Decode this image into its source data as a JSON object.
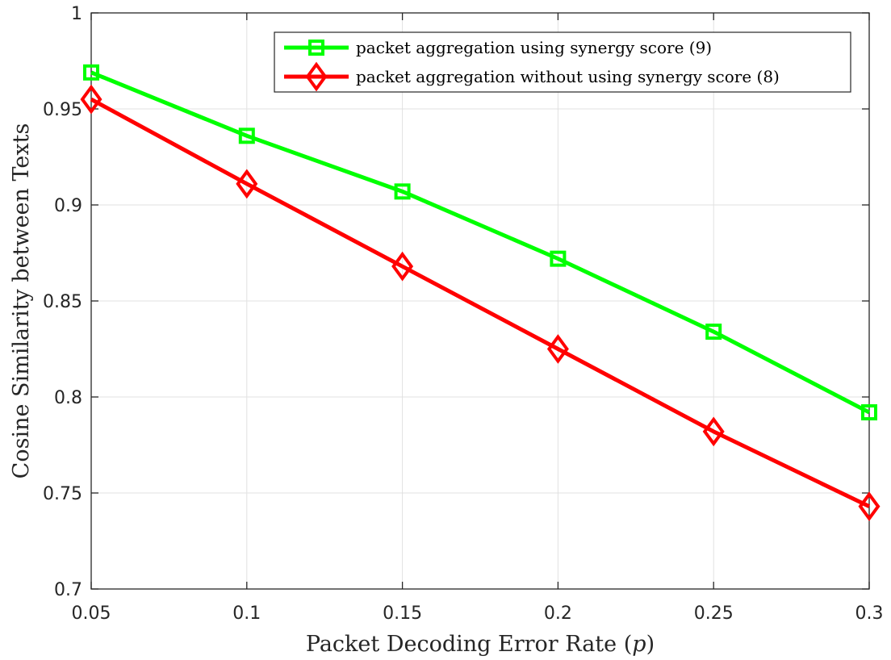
{
  "chart_data": {
    "type": "line",
    "title": "",
    "xlabel": "Packet Decoding Error Rate (",
    "xlabel_var": "p",
    "xlabel_end": ")",
    "ylabel": "Cosine Similarity between Texts",
    "xlim": [
      0.05,
      0.3
    ],
    "ylim": [
      0.7,
      1.0
    ],
    "x_ticks": [
      0.05,
      0.1,
      0.15,
      0.2,
      0.25,
      0.3
    ],
    "x_tick_labels": [
      "0.05",
      "0.1",
      "0.15",
      "0.2",
      "0.25",
      "0.3"
    ],
    "y_ticks": [
      0.7,
      0.75,
      0.8,
      0.85,
      0.9,
      0.95,
      1.0
    ],
    "y_tick_labels": [
      "0.7",
      "0.75",
      "0.8",
      "0.85",
      "0.9",
      "0.95",
      "1"
    ],
    "grid": true,
    "legend_position": "top-right",
    "x": [
      0.05,
      0.1,
      0.15,
      0.2,
      0.25,
      0.3
    ],
    "series": [
      {
        "name": "packet aggregation using synergy score (9)",
        "color": "#00ff00",
        "marker": "square",
        "values": [
          0.969,
          0.936,
          0.907,
          0.872,
          0.834,
          0.792
        ]
      },
      {
        "name": "packet aggregation without using synergy score (8)",
        "color": "#ff0000",
        "marker": "diamond",
        "values": [
          0.955,
          0.911,
          0.868,
          0.825,
          0.782,
          0.743
        ]
      }
    ]
  }
}
